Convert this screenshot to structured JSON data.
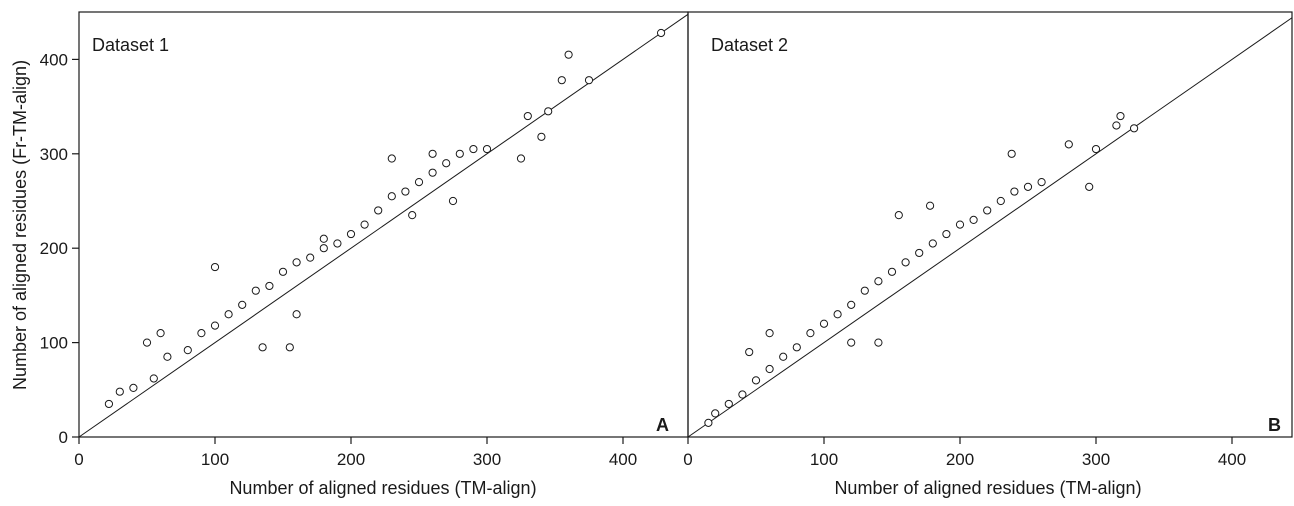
{
  "chart_data": [
    {
      "type": "scatter",
      "title": "Dataset 1",
      "panel_label": "A",
      "xlabel": "Number of aligned residues (TM-align)",
      "ylabel": "Number of aligned residues (Fr-TM-align)",
      "xlim": [
        0,
        450
      ],
      "ylim": [
        0,
        450
      ],
      "xticks": [
        "0",
        "100",
        "200",
        "300",
        "400"
      ],
      "yticks": [
        "0",
        "100",
        "200",
        "300",
        "400"
      ],
      "reference_line": "y = x",
      "marker": "open-circle",
      "series": [
        {
          "points": [
            [
              22,
              35
            ],
            [
              30,
              48
            ],
            [
              40,
              52
            ],
            [
              55,
              62
            ],
            [
              65,
              85
            ],
            [
              80,
              92
            ],
            [
              90,
              110
            ],
            [
              100,
              118
            ],
            [
              110,
              130
            ],
            [
              120,
              140
            ],
            [
              130,
              155
            ],
            [
              140,
              160
            ],
            [
              150,
              175
            ],
            [
              160,
              185
            ],
            [
              170,
              190
            ],
            [
              180,
              200
            ],
            [
              190,
              205
            ],
            [
              200,
              215
            ],
            [
              210,
              225
            ],
            [
              220,
              240
            ],
            [
              230,
              255
            ],
            [
              240,
              260
            ],
            [
              250,
              270
            ],
            [
              260,
              280
            ],
            [
              270,
              290
            ],
            [
              280,
              300
            ],
            [
              290,
              305
            ],
            [
              300,
              305
            ],
            [
              330,
              340
            ],
            [
              345,
              345
            ],
            [
              355,
              378
            ],
            [
              360,
              405
            ],
            [
              375,
              378
            ],
            [
              428,
              428
            ],
            [
              325,
              295
            ],
            [
              340,
              318
            ],
            [
              230,
              295
            ],
            [
              155,
              95
            ],
            [
              135,
              95
            ],
            [
              180,
              210
            ],
            [
              50,
              100
            ],
            [
              60,
              110
            ],
            [
              100,
              180
            ],
            [
              260,
              300
            ],
            [
              275,
              250
            ],
            [
              245,
              235
            ],
            [
              160,
              130
            ]
          ]
        }
      ]
    },
    {
      "type": "scatter",
      "title": "Dataset 2",
      "panel_label": "B",
      "xlabel": "Number of aligned residues (TM-align)",
      "ylabel": "",
      "xlim": [
        0,
        450
      ],
      "ylim": [
        0,
        450
      ],
      "xticks": [
        "0",
        "100",
        "200",
        "300",
        "400"
      ],
      "yticks": [],
      "reference_line": "y = x",
      "marker": "open-circle",
      "series": [
        {
          "points": [
            [
              15,
              15
            ],
            [
              20,
              25
            ],
            [
              30,
              35
            ],
            [
              40,
              45
            ],
            [
              50,
              60
            ],
            [
              60,
              72
            ],
            [
              70,
              85
            ],
            [
              80,
              95
            ],
            [
              90,
              110
            ],
            [
              100,
              120
            ],
            [
              110,
              130
            ],
            [
              120,
              140
            ],
            [
              130,
              155
            ],
            [
              140,
              165
            ],
            [
              150,
              175
            ],
            [
              160,
              185
            ],
            [
              170,
              195
            ],
            [
              180,
              205
            ],
            [
              190,
              215
            ],
            [
              200,
              225
            ],
            [
              210,
              230
            ],
            [
              220,
              240
            ],
            [
              230,
              250
            ],
            [
              240,
              260
            ],
            [
              250,
              265
            ],
            [
              260,
              270
            ],
            [
              280,
              310
            ],
            [
              300,
              305
            ],
            [
              315,
              330
            ],
            [
              318,
              340
            ],
            [
              328,
              327
            ],
            [
              295,
              265
            ],
            [
              238,
              300
            ],
            [
              155,
              235
            ],
            [
              178,
              245
            ],
            [
              140,
              100
            ],
            [
              120,
              100
            ],
            [
              45,
              90
            ],
            [
              60,
              110
            ]
          ]
        }
      ]
    }
  ]
}
